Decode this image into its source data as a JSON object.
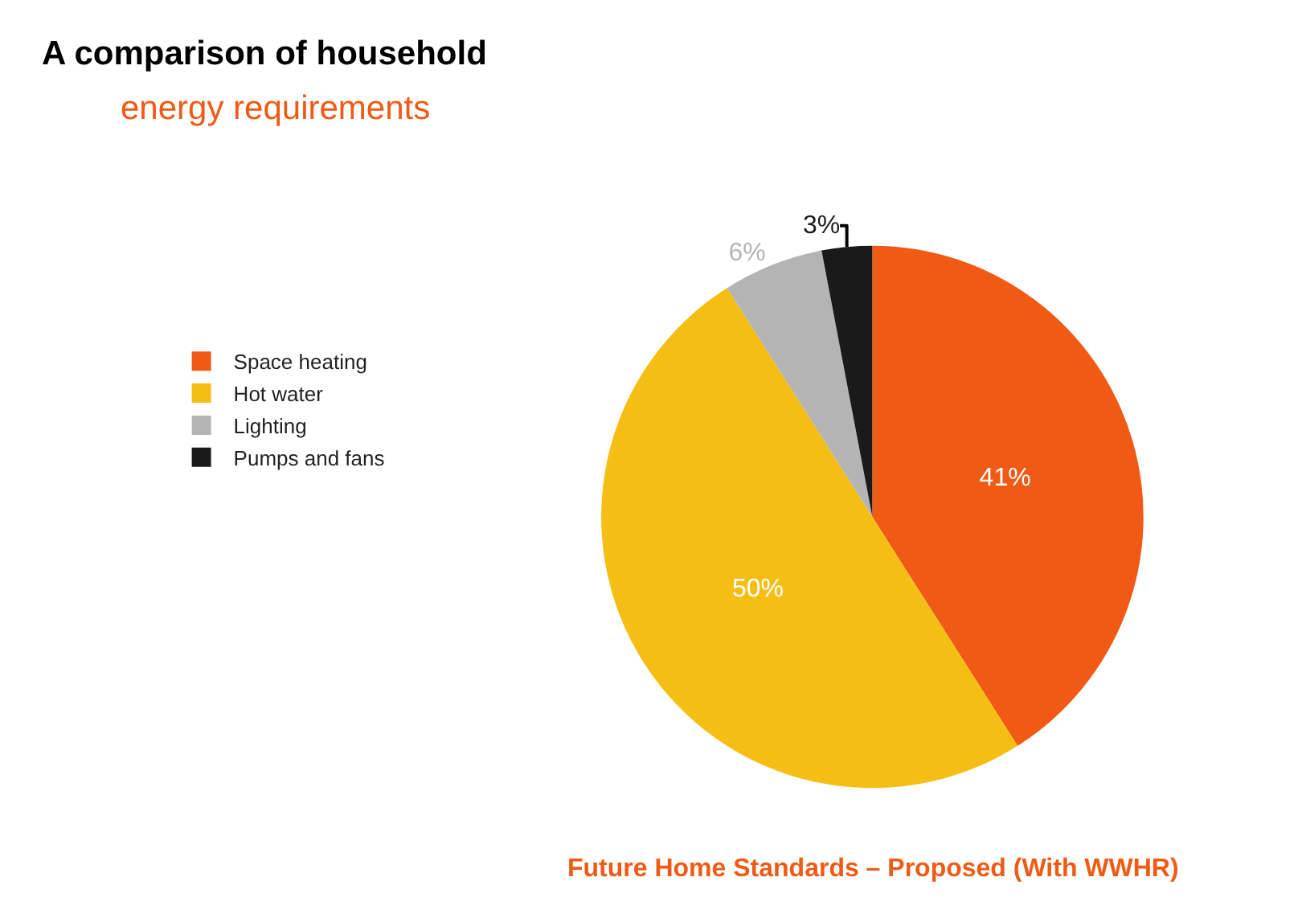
{
  "chart_data": {
    "type": "pie",
    "title": "A comparison of household",
    "subtitle": "energy requirements",
    "categories": [
      "Space heating",
      "Hot water",
      "Lighting",
      "Pumps and fans"
    ],
    "values": [
      41,
      50,
      6,
      3
    ],
    "colors": [
      "#f05a14",
      "#f5be14",
      "#b4b4b4",
      "#1a1a1a"
    ],
    "value_labels": [
      "41%",
      "50%",
      "6%",
      "3%"
    ],
    "annotations": [
      "Future Home Standards – Proposed (With WWHR)"
    ],
    "legend": "left"
  }
}
